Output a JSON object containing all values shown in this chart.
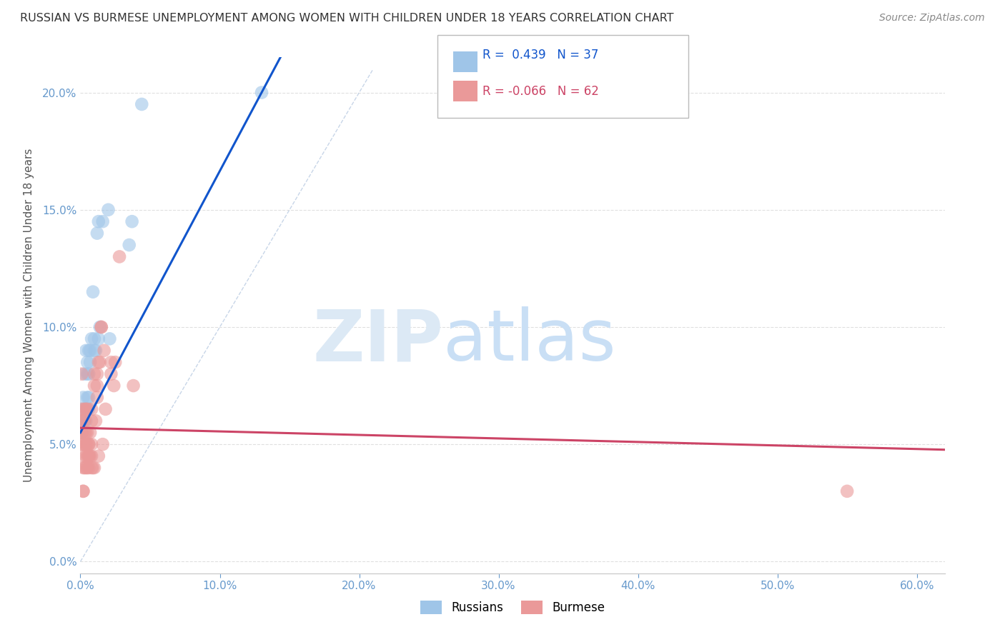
{
  "title": "RUSSIAN VS BURMESE UNEMPLOYMENT AMONG WOMEN WITH CHILDREN UNDER 18 YEARS CORRELATION CHART",
  "source": "Source: ZipAtlas.com",
  "ylabel": "Unemployment Among Women with Children Under 18 years",
  "xlabel_ticks": [
    "0.0%",
    "10.0%",
    "20.0%",
    "30.0%",
    "40.0%",
    "50.0%",
    "60.0%"
  ],
  "xlabel_vals": [
    0.0,
    0.1,
    0.2,
    0.3,
    0.4,
    0.5,
    0.6
  ],
  "ytick_labels": [
    "0.0%",
    "5.0%",
    "10.0%",
    "15.0%",
    "20.0%"
  ],
  "ytick_vals": [
    0.0,
    0.05,
    0.1,
    0.15,
    0.2
  ],
  "xlim": [
    0.0,
    0.62
  ],
  "ylim": [
    -0.005,
    0.215
  ],
  "russian_R": 0.439,
  "russian_N": 37,
  "burmese_R": -0.066,
  "burmese_N": 62,
  "russian_color": "#9fc5e8",
  "burmese_color": "#ea9999",
  "regression_line_russian_color": "#1155cc",
  "regression_line_burmese_color": "#cc4466",
  "diagonal_line_color": "#b0c4de",
  "watermark_color": "#dce9f5",
  "background_color": "#ffffff",
  "grid_color": "#e0e0e0",
  "russians_x": [
    0.001,
    0.001,
    0.002,
    0.002,
    0.002,
    0.003,
    0.003,
    0.003,
    0.004,
    0.004,
    0.004,
    0.005,
    0.005,
    0.005,
    0.005,
    0.006,
    0.006,
    0.006,
    0.006,
    0.007,
    0.007,
    0.008,
    0.009,
    0.01,
    0.01,
    0.011,
    0.012,
    0.013,
    0.013,
    0.014,
    0.016,
    0.02,
    0.021,
    0.035,
    0.037,
    0.044,
    0.13
  ],
  "russians_y": [
    0.055,
    0.06,
    0.06,
    0.065,
    0.07,
    0.06,
    0.065,
    0.08,
    0.06,
    0.065,
    0.09,
    0.065,
    0.07,
    0.08,
    0.085,
    0.065,
    0.07,
    0.08,
    0.09,
    0.085,
    0.09,
    0.095,
    0.115,
    0.09,
    0.095,
    0.09,
    0.14,
    0.145,
    0.095,
    0.1,
    0.145,
    0.15,
    0.095,
    0.135,
    0.145,
    0.195,
    0.2
  ],
  "burmese_x": [
    0.001,
    0.001,
    0.001,
    0.001,
    0.001,
    0.001,
    0.001,
    0.002,
    0.002,
    0.002,
    0.002,
    0.002,
    0.003,
    0.003,
    0.003,
    0.003,
    0.003,
    0.004,
    0.004,
    0.004,
    0.004,
    0.004,
    0.005,
    0.005,
    0.005,
    0.005,
    0.005,
    0.006,
    0.006,
    0.006,
    0.006,
    0.006,
    0.007,
    0.007,
    0.008,
    0.008,
    0.008,
    0.008,
    0.008,
    0.009,
    0.01,
    0.01,
    0.01,
    0.011,
    0.012,
    0.012,
    0.012,
    0.013,
    0.013,
    0.014,
    0.015,
    0.015,
    0.016,
    0.017,
    0.018,
    0.022,
    0.022,
    0.024,
    0.025,
    0.028,
    0.038,
    0.55
  ],
  "burmese_y": [
    0.05,
    0.055,
    0.055,
    0.06,
    0.06,
    0.065,
    0.08,
    0.03,
    0.03,
    0.04,
    0.045,
    0.05,
    0.04,
    0.05,
    0.055,
    0.06,
    0.065,
    0.04,
    0.045,
    0.05,
    0.055,
    0.065,
    0.04,
    0.045,
    0.05,
    0.055,
    0.065,
    0.04,
    0.045,
    0.045,
    0.05,
    0.05,
    0.045,
    0.055,
    0.04,
    0.045,
    0.05,
    0.06,
    0.065,
    0.04,
    0.075,
    0.08,
    0.04,
    0.06,
    0.07,
    0.075,
    0.08,
    0.045,
    0.085,
    0.085,
    0.1,
    0.1,
    0.05,
    0.09,
    0.065,
    0.08,
    0.085,
    0.075,
    0.085,
    0.13,
    0.075,
    0.03
  ],
  "legend_R1_text": "R =  0.439   N = 37",
  "legend_R2_text": "R = -0.066   N = 62"
}
